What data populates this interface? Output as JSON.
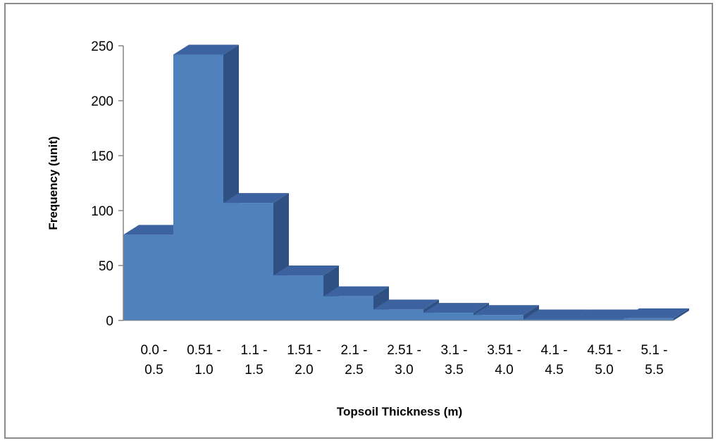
{
  "chart_data": {
    "type": "bar",
    "title": "",
    "xlabel": "Topsoil Thickness (m)",
    "ylabel": "Frequency (unit)",
    "categories": [
      [
        "0.0 -",
        "0.5"
      ],
      [
        "0.51 -",
        "1.0"
      ],
      [
        "1.1 -",
        "1.5"
      ],
      [
        "1.51 -",
        "2.0"
      ],
      [
        "2.1 -",
        "2.5"
      ],
      [
        "2.51 -",
        "3.0"
      ],
      [
        "3.1 -",
        "3.5"
      ],
      [
        "3.51 -",
        "4.0"
      ],
      [
        "4.1 -",
        "4.5"
      ],
      [
        "4.51 -",
        "5.0"
      ],
      [
        "5.1 -",
        "5.5"
      ]
    ],
    "values": [
      78,
      242,
      107,
      41,
      22,
      10,
      7,
      5,
      1,
      1,
      2
    ],
    "ylim": [
      0,
      250
    ],
    "yticks": [
      "0",
      "50",
      "100",
      "150",
      "200",
      "250"
    ],
    "grid": false,
    "legend": "none",
    "style": "3d",
    "colors": {
      "bar_front": "#4f81bd",
      "bar_side": "#2f5083",
      "bar_top": "#3c63a0",
      "axis": "#868686",
      "frame": "#8c8c8c"
    }
  }
}
